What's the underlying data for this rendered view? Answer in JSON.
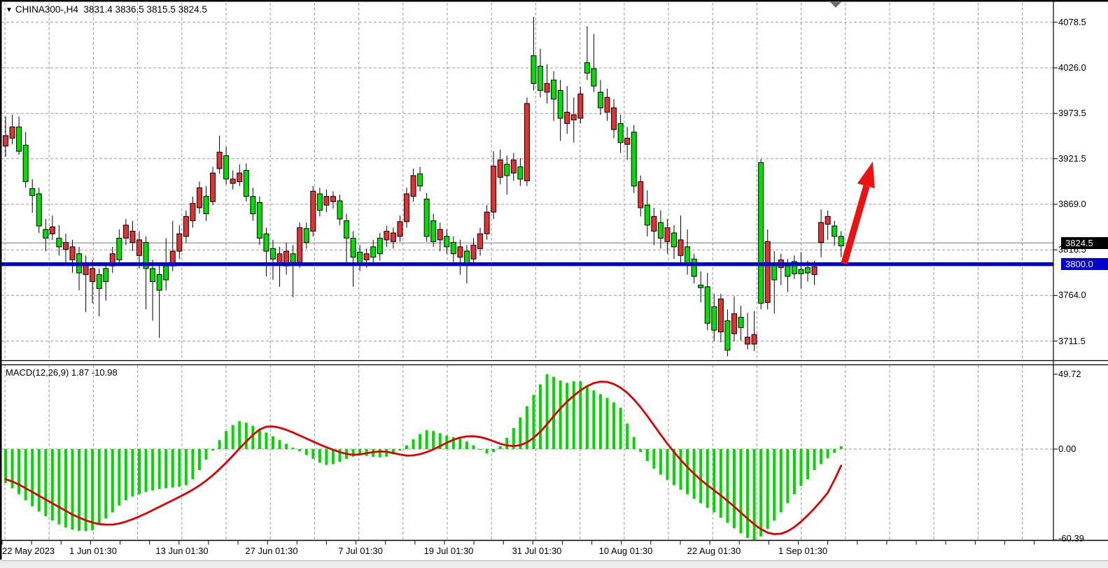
{
  "header": {
    "marker": "▼",
    "symbol": "CHINA300-,H4",
    "ohlc": "3831.4 3836.5 3815.5 3824.5"
  },
  "indicator": {
    "label": "MACD(12,26,9) 1.87 -10.98"
  },
  "price_axis": {
    "labels": [
      "4078.5",
      "4026.0",
      "3973.5",
      "3921.5",
      "3869.0",
      "3816.5",
      "3764.0",
      "3711.5"
    ],
    "current_price_box": "3824.5",
    "support_box": "3800.0"
  },
  "macd_axis": {
    "labels": [
      "49.72",
      "0.00",
      "-60.39"
    ]
  },
  "time_axis": {
    "labels": [
      "22 May 2023",
      "1 Jun 01:30",
      "13 Jun 01:30",
      "27 Jun 01:30",
      "7 Jul 01:30",
      "19 Jul 01:30",
      "31 Jul 01:30",
      "10 Aug 01:30",
      "22 Aug 01:30",
      "1 Sep 01:30"
    ]
  },
  "colors": {
    "bull_candle": "#00DF00",
    "bear_candle": "#E03232",
    "candle_outline": "#000000",
    "macd_histogram": "#00D800",
    "macd_signal": "#E00000",
    "support_line": "#0000CD",
    "current_price_line": "#7a7a7a",
    "grid": "#999999",
    "arrow": "#EE1111",
    "price_box_bg": "#000000",
    "price_box_fg": "#ffffff",
    "support_box_bg": "#0000CD",
    "frame": "#000000",
    "shift_marker": "#6e6e6e"
  },
  "chart_data": {
    "type": "candlestick",
    "symbol": "CHINA300-",
    "timeframe": "H4",
    "ohlc_display": {
      "open": 3831.4,
      "high": 3836.5,
      "low": 3815.5,
      "close": 3824.5
    },
    "price_gridlines": [
      4078.5,
      4026.0,
      3973.5,
      3921.5,
      3869.0,
      3816.5,
      3764.0,
      3711.5
    ],
    "price_axis_range": [
      3689,
      4102
    ],
    "current_price": 3824.5,
    "support_line_price": 3800.0,
    "trend_arrow": {
      "from_price": 3800,
      "to_price": 3920,
      "direction": "up",
      "color": "#EE1111"
    },
    "candle_format": [
      "high",
      "low",
      "body_top",
      "body_bottom",
      "color g=green r=red"
    ],
    "candles": [
      [
        3970,
        3924,
        3948,
        3936,
        "r"
      ],
      [
        3972,
        3938,
        3958,
        3945,
        "r"
      ],
      [
        3970,
        3926,
        3958,
        3930,
        "g"
      ],
      [
        3952,
        3888,
        3937,
        3895,
        "g"
      ],
      [
        3898,
        3859,
        3887,
        3879,
        "g"
      ],
      [
        3888,
        3836,
        3881,
        3844,
        "g"
      ],
      [
        3852,
        3815,
        3840,
        3830,
        "g"
      ],
      [
        3856,
        3828,
        3843,
        3835,
        "r"
      ],
      [
        3845,
        3810,
        3830,
        3820,
        "g"
      ],
      [
        3835,
        3800,
        3825,
        3817,
        "r"
      ],
      [
        3828,
        3790,
        3820,
        3805,
        "r"
      ],
      [
        3820,
        3770,
        3812,
        3790,
        "g"
      ],
      [
        3810,
        3745,
        3800,
        3788,
        "r"
      ],
      [
        3805,
        3755,
        3795,
        3780,
        "r"
      ],
      [
        3795,
        3740,
        3788,
        3772,
        "g"
      ],
      [
        3802,
        3758,
        3795,
        3780,
        "g"
      ],
      [
        3820,
        3790,
        3812,
        3798,
        "r"
      ],
      [
        3840,
        3798,
        3830,
        3805,
        "g"
      ],
      [
        3852,
        3822,
        3845,
        3830,
        "r"
      ],
      [
        3850,
        3815,
        3838,
        3825,
        "r"
      ],
      [
        3838,
        3795,
        3828,
        3810,
        "r"
      ],
      [
        3832,
        3748,
        3825,
        3795,
        "g"
      ],
      [
        3805,
        3735,
        3795,
        3780,
        "g"
      ],
      [
        3798,
        3715,
        3788,
        3770,
        "g"
      ],
      [
        3830,
        3770,
        3798,
        3782,
        "g"
      ],
      [
        3850,
        3792,
        3815,
        3798,
        "r"
      ],
      [
        3845,
        3806,
        3835,
        3815,
        "r"
      ],
      [
        3862,
        3825,
        3855,
        3832,
        "r"
      ],
      [
        3878,
        3842,
        3870,
        3850,
        "r"
      ],
      [
        3895,
        3858,
        3888,
        3865,
        "r"
      ],
      [
        3890,
        3850,
        3878,
        3858,
        "g"
      ],
      [
        3912,
        3868,
        3905,
        3872,
        "r"
      ],
      [
        3948,
        3904,
        3929,
        3910,
        "r"
      ],
      [
        3935,
        3892,
        3925,
        3898,
        "g"
      ],
      [
        3908,
        3886,
        3898,
        3893,
        "r"
      ],
      [
        3915,
        3890,
        3905,
        3895,
        "r"
      ],
      [
        3916,
        3872,
        3908,
        3878,
        "g"
      ],
      [
        3888,
        3850,
        3878,
        3858,
        "g"
      ],
      [
        3878,
        3822,
        3871,
        3830,
        "g"
      ],
      [
        3842,
        3786,
        3835,
        3815,
        "g"
      ],
      [
        3828,
        3782,
        3818,
        3806,
        "g"
      ],
      [
        3820,
        3774,
        3812,
        3800,
        "r"
      ],
      [
        3825,
        3788,
        3815,
        3798,
        "r"
      ],
      [
        3822,
        3762,
        3812,
        3802,
        "g"
      ],
      [
        3848,
        3796,
        3842,
        3802,
        "r"
      ],
      [
        3848,
        3818,
        3841,
        3825,
        "g"
      ],
      [
        3890,
        3832,
        3884,
        3838,
        "r"
      ],
      [
        3888,
        3855,
        3881,
        3862,
        "g"
      ],
      [
        3886,
        3860,
        3878,
        3868,
        "r"
      ],
      [
        3884,
        3864,
        3878,
        3872,
        "r"
      ],
      [
        3880,
        3845,
        3873,
        3852,
        "g"
      ],
      [
        3858,
        3801,
        3850,
        3830,
        "g"
      ],
      [
        3838,
        3774,
        3830,
        3808,
        "g"
      ],
      [
        3822,
        3792,
        3814,
        3801,
        "g"
      ],
      [
        3818,
        3796,
        3812,
        3805,
        "r"
      ],
      [
        3828,
        3800,
        3820,
        3808,
        "g"
      ],
      [
        3836,
        3804,
        3830,
        3812,
        "g"
      ],
      [
        3844,
        3820,
        3838,
        3828,
        "r"
      ],
      [
        3842,
        3818,
        3836,
        3826,
        "r"
      ],
      [
        3856,
        3826,
        3849,
        3832,
        "r"
      ],
      [
        3888,
        3842,
        3881,
        3849,
        "r"
      ],
      [
        3910,
        3872,
        3902,
        3878,
        "r"
      ],
      [
        3912,
        3884,
        3904,
        3890,
        "g"
      ],
      [
        3882,
        3826,
        3875,
        3832,
        "g"
      ],
      [
        3858,
        3820,
        3850,
        3826,
        "g"
      ],
      [
        3848,
        3815,
        3840,
        3828,
        "r"
      ],
      [
        3840,
        3812,
        3832,
        3820,
        "g"
      ],
      [
        3832,
        3798,
        3825,
        3812,
        "g"
      ],
      [
        3828,
        3788,
        3820,
        3808,
        "r"
      ],
      [
        3822,
        3778,
        3815,
        3800,
        "g"
      ],
      [
        3830,
        3798,
        3822,
        3806,
        "r"
      ],
      [
        3842,
        3810,
        3835,
        3818,
        "r"
      ],
      [
        3868,
        3828,
        3860,
        3835,
        "r"
      ],
      [
        3930,
        3852,
        3913,
        3860,
        "r"
      ],
      [
        3932,
        3892,
        3920,
        3900,
        "r"
      ],
      [
        3925,
        3880,
        3915,
        3902,
        "g"
      ],
      [
        3928,
        3896,
        3920,
        3905,
        "r"
      ],
      [
        3922,
        3890,
        3912,
        3898,
        "g"
      ],
      [
        3992,
        3890,
        3985,
        3896,
        "r"
      ],
      [
        4085,
        4000,
        4040,
        4008,
        "g"
      ],
      [
        4048,
        3992,
        4028,
        4000,
        "g"
      ],
      [
        4030,
        3985,
        4008,
        3998,
        "r"
      ],
      [
        4022,
        3965,
        4012,
        3990,
        "g"
      ],
      [
        4012,
        3942,
        4000,
        3968,
        "g"
      ],
      [
        4005,
        3950,
        3975,
        3962,
        "r"
      ],
      [
        3992,
        3940,
        3972,
        3966,
        "r"
      ],
      [
        4004,
        3962,
        3996,
        3968,
        "r"
      ],
      [
        4074,
        4012,
        4032,
        4020,
        "g"
      ],
      [
        4065,
        3998,
        4025,
        4005,
        "g"
      ],
      [
        4012,
        3972,
        3998,
        3980,
        "g"
      ],
      [
        4002,
        3965,
        3992,
        3975,
        "r"
      ],
      [
        3990,
        3945,
        3980,
        3955,
        "r"
      ],
      [
        3972,
        3928,
        3962,
        3940,
        "g"
      ],
      [
        3958,
        3920,
        3945,
        3938,
        "r"
      ],
      [
        3960,
        3882,
        3952,
        3890,
        "g"
      ],
      [
        3902,
        3855,
        3895,
        3865,
        "r"
      ],
      [
        3885,
        3832,
        3868,
        3845,
        "g"
      ],
      [
        3865,
        3822,
        3855,
        3838,
        "r"
      ],
      [
        3862,
        3818,
        3848,
        3830,
        "g"
      ],
      [
        3852,
        3812,
        3842,
        3826,
        "r"
      ],
      [
        3845,
        3806,
        3836,
        3820,
        "g"
      ],
      [
        3856,
        3800,
        3828,
        3810,
        "r"
      ],
      [
        3840,
        3788,
        3820,
        3800,
        "g"
      ],
      [
        3812,
        3778,
        3806,
        3786,
        "g"
      ],
      [
        3792,
        3756,
        3776,
        3773,
        "g"
      ],
      [
        3790,
        3724,
        3774,
        3732,
        "g"
      ],
      [
        3766,
        3711,
        3751,
        3724,
        "g"
      ],
      [
        3766,
        3710,
        3760,
        3722,
        "r"
      ],
      [
        3748,
        3694,
        3735,
        3701,
        "g"
      ],
      [
        3763,
        3711,
        3743,
        3720,
        "r"
      ],
      [
        3752,
        3712,
        3739,
        3727,
        "g"
      ],
      [
        3744,
        3702,
        3716,
        3708,
        "r"
      ],
      [
        3746,
        3700,
        3719,
        3708,
        "r"
      ],
      [
        3921,
        3748,
        3917,
        3755,
        "g"
      ],
      [
        3840,
        3748,
        3826,
        3756,
        "r"
      ],
      [
        3815,
        3743,
        3800,
        3782,
        "g"
      ],
      [
        3812,
        3776,
        3805,
        3796,
        "r"
      ],
      [
        3806,
        3768,
        3798,
        3786,
        "g"
      ],
      [
        3810,
        3783,
        3803,
        3789,
        "g"
      ],
      [
        3814,
        3772,
        3794,
        3789,
        "g"
      ],
      [
        3804,
        3780,
        3796,
        3790,
        "g"
      ],
      [
        3804,
        3776,
        3797,
        3788,
        "r"
      ],
      [
        3863,
        3808,
        3848,
        3825,
        "r"
      ],
      [
        3862,
        3828,
        3855,
        3846,
        "r"
      ],
      [
        3850,
        3821,
        3844,
        3832,
        "g"
      ],
      [
        3838,
        3808,
        3832,
        3821,
        "g"
      ]
    ],
    "macd": {
      "params": [
        12,
        26,
        9
      ],
      "macd_value": 1.87,
      "signal_value": -10.98,
      "scale_max": 49.72,
      "scale_min": -60.39,
      "histogram": [
        -22.5,
        -26,
        -30,
        -34,
        -38,
        -41.5,
        -44.5,
        -47.5,
        -50,
        -52,
        -53.5,
        -54.3,
        -54.5,
        -54,
        -50,
        -46,
        -42,
        -37.5,
        -34,
        -31.5,
        -30,
        -28.5,
        -27.5,
        -26.5,
        -26,
        -25.5,
        -25,
        -24,
        -20,
        -14,
        -7,
        -1,
        6,
        12,
        16,
        18.5,
        17.5,
        15.5,
        13.5,
        11,
        8.5,
        6,
        3.5,
        1,
        -1.5,
        -4,
        -6.5,
        -9,
        -10.5,
        -10,
        -8.5,
        -6.5,
        -5,
        -4.2,
        -4.5,
        -5.2,
        -5.5,
        -5,
        -3.5,
        -1,
        2.5,
        6.5,
        10,
        12.5,
        12,
        10.5,
        9,
        8,
        7,
        5,
        2.5,
        -0.5,
        -3,
        -2,
        2,
        7.5,
        14,
        21,
        28.5,
        36,
        43,
        49.7,
        48,
        45.5,
        44,
        45,
        45,
        42,
        39,
        36.5,
        34,
        31,
        27.5,
        17,
        8,
        -2,
        -8,
        -13,
        -17,
        -20.5,
        -24,
        -27,
        -30,
        -33,
        -36,
        -39,
        -42,
        -45.5,
        -49,
        -52.5,
        -56,
        -59,
        -60.4,
        -58,
        -53,
        -47.5,
        -42,
        -36,
        -30,
        -24.5,
        -20,
        -14,
        -10,
        -6,
        -2.5,
        1.87
      ],
      "signal": [
        -20,
        -21.5,
        -23.5,
        -26,
        -28.5,
        -31,
        -33.5,
        -36,
        -38.5,
        -41,
        -43.5,
        -45.5,
        -47.3,
        -48.8,
        -49.8,
        -50.2,
        -50.2,
        -49.5,
        -48.2,
        -46.6,
        -44.8,
        -42.8,
        -40.6,
        -38.4,
        -36.2,
        -34,
        -31.8,
        -29.5,
        -27,
        -24.2,
        -21,
        -17.4,
        -13.4,
        -9,
        -4.4,
        0.4,
        5,
        9.4,
        13,
        14.8,
        15,
        14.2,
        12.8,
        11,
        9,
        7,
        5,
        3,
        1.2,
        -0.5,
        -2,
        -3.2,
        -3.8,
        -3.5,
        -2.8,
        -2,
        -1.6,
        -1.8,
        -2.6,
        -3.6,
        -4.3,
        -4.2,
        -3.4,
        -2,
        -0.2,
        2,
        4.2,
        6.2,
        7.6,
        8.4,
        8.5,
        8,
        6.8,
        5.2,
        3.6,
        2.4,
        2,
        2.6,
        4.4,
        7.5,
        11.5,
        16.5,
        22,
        27,
        31.5,
        35.5,
        39,
        41.8,
        43.8,
        44.8,
        44.6,
        43.2,
        40.8,
        37.4,
        33,
        27.8,
        22,
        15.8,
        9.6,
        3.6,
        -2,
        -7.2,
        -12,
        -16.4,
        -20.4,
        -24,
        -27.4,
        -30.8,
        -34.4,
        -38.2,
        -42.2,
        -46.2,
        -50,
        -53.2,
        -55.5,
        -56.5,
        -56.2,
        -54.6,
        -51.8,
        -48.2,
        -44,
        -39.4,
        -34.4,
        -29,
        -20.5,
        -11
      ]
    }
  }
}
